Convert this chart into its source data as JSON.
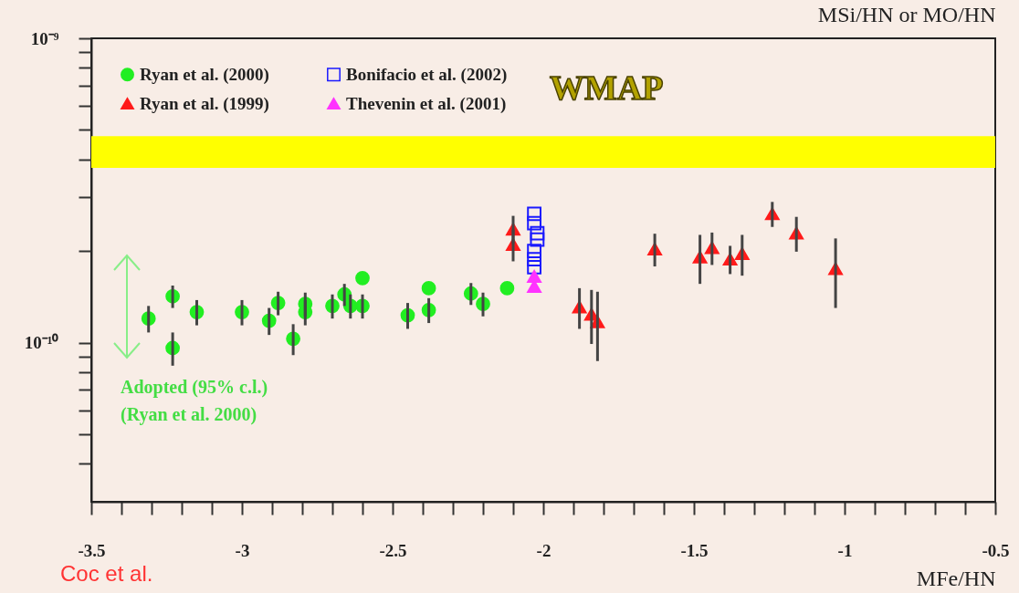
{
  "chart_data": {
    "type": "scatter",
    "xlabel": "MFe/HN",
    "ylabel": "MSi/HN or MO/HN",
    "log": "y",
    "grid": false,
    "legend": "top left",
    "xlim": [
      -3.5,
      -0.5
    ],
    "xticks": [
      -3.5,
      {
        "value": -3.4,
        "label": null
      },
      {
        "value": -3.3,
        "label": null
      },
      {
        "value": -3.2,
        "label": null
      },
      {
        "value": -3.1,
        "label": null
      },
      -3,
      {
        "value": -2.9,
        "label": null
      },
      {
        "value": -2.8,
        "label": null
      },
      {
        "value": -2.7,
        "label": null
      },
      {
        "value": -2.6,
        "label": null
      },
      -2.5,
      {
        "value": -2.4,
        "label": null
      },
      {
        "value": -2.3,
        "label": null
      },
      {
        "value": -2.2,
        "label": null
      },
      {
        "value": -2.1,
        "label": null
      },
      -2,
      {
        "value": -1.9,
        "label": null
      },
      {
        "value": -1.8,
        "label": null
      },
      {
        "value": -1.7,
        "label": null
      },
      {
        "value": -1.6,
        "label": null
      },
      -1.5,
      {
        "value": -1.4,
        "label": null
      },
      {
        "value": -1.3,
        "label": null
      },
      {
        "value": -1.2,
        "label": null
      },
      {
        "value": -1.1,
        "label": null
      },
      -1,
      {
        "value": -0.9,
        "label": null
      },
      {
        "value": -0.8,
        "label": null
      },
      {
        "value": -0.7,
        "label": null
      },
      {
        "value": -0.6,
        "label": null
      },
      -0.5
    ],
    "ylim": [
      3e-11,
      1e-09
    ],
    "yticks": [
      {
        "value": 4e-11,
        "label": null
      },
      {
        "value": 5e-11,
        "label": null
      },
      {
        "value": 6e-11,
        "label": null
      },
      {
        "value": 7e-11,
        "label": null
      },
      {
        "value": 8e-11,
        "label": null
      },
      {
        "value": 9e-11,
        "label": null
      },
      {
        "value": 1e-10,
        "label": "10⁻¹⁰"
      },
      {
        "value": 2e-10,
        "label": null
      },
      {
        "value": 3e-10,
        "label": null
      },
      {
        "value": 4e-10,
        "label": null
      },
      {
        "value": 5e-10,
        "label": null
      },
      {
        "value": 6e-10,
        "label": null
      },
      {
        "value": 7e-10,
        "label": null
      },
      {
        "value": 8e-10,
        "label": null
      },
      {
        "value": 9e-10,
        "label": null
      },
      {
        "value": 1e-09,
        "label": "10⁻⁹"
      }
    ],
    "bands": [
      {
        "axis": "y",
        "from": 3.75e-10,
        "to": 4.77e-10,
        "label": "WMAP",
        "color": "#ffff00"
      }
    ],
    "annotations": [
      "Adopted (95% c.l.)",
      "(Ryan et al. 2000)",
      "Coc et al."
    ],
    "series": [
      {
        "name": "Ryan et al. (2000)",
        "color": "#22ee22",
        "marker": "circle",
        "x": [
          -3.31,
          -3.23,
          -3.23,
          -3.15,
          -3.0,
          -2.91,
          -2.88,
          -2.83,
          -2.79,
          -2.79,
          -2.7,
          -2.66,
          -2.64,
          -2.6,
          -2.6,
          -2.45,
          -2.38,
          -2.38,
          -2.24,
          -2.2,
          -2.12
        ],
        "values": [
          1.2e-10,
          1.42e-10,
          9.6e-11,
          1.26e-10,
          1.26e-10,
          1.18e-10,
          1.35e-10,
          1.03e-10,
          1.34e-10,
          1.26e-10,
          1.32e-10,
          1.44e-10,
          1.32e-10,
          1.63e-10,
          1.32e-10,
          1.23e-10,
          1.51e-10,
          1.28e-10,
          1.45e-10,
          1.34e-10,
          1.51e-10
        ],
        "errors": [
          1.2e-11,
          1.2e-11,
          1.2e-11,
          1.2e-11,
          1.2e-11,
          1.2e-11,
          1.2e-11,
          1.2e-11,
          1.2e-11,
          1.2e-11,
          1.2e-11,
          1.2e-11,
          1.2e-11,
          null,
          1.2e-11,
          1.2e-11,
          null,
          1.2e-11,
          1.2e-11,
          1.2e-11,
          null
        ]
      },
      {
        "name": "Ryan et al. (1999)",
        "color": "#ff1a1a",
        "marker": "triangle",
        "x": [
          -2.1,
          -2.1,
          -1.88,
          -1.84,
          -1.82,
          -1.63,
          -1.48,
          -1.44,
          -1.38,
          -1.34,
          -1.24,
          -1.16,
          -1.03
        ],
        "values": [
          2.36e-10,
          2.1e-10,
          1.31e-10,
          1.24e-10,
          1.17e-10,
          2.03e-10,
          1.91e-10,
          2.05e-10,
          1.88e-10,
          1.96e-10,
          2.65e-10,
          2.29e-10,
          1.75e-10
        ],
        "errors": [
          2.5e-11,
          2.5e-11,
          2e-11,
          2.5e-11,
          3e-11,
          2.5e-11,
          3.5e-11,
          2.5e-11,
          2e-11,
          3e-11,
          2.5e-11,
          3e-11,
          4.5e-11
        ]
      },
      {
        "name": "Bonifacio et al. (2002)",
        "color": "#1a1aff",
        "marker": "square",
        "x": [
          -2.03,
          -2.03,
          -2.02,
          -2.02,
          -2.03,
          -2.03,
          -2.03
        ],
        "values": [
          2.65e-10,
          2.47e-10,
          2.29e-10,
          2.18e-10,
          2e-10,
          1.88e-10,
          1.77e-10
        ]
      },
      {
        "name": "Thevenin et al. (2001)",
        "color": "#ff33ff",
        "marker": "triangle",
        "x": [
          -2.03,
          -2.03
        ],
        "values": [
          1.65e-10,
          1.53e-10
        ]
      }
    ]
  }
}
